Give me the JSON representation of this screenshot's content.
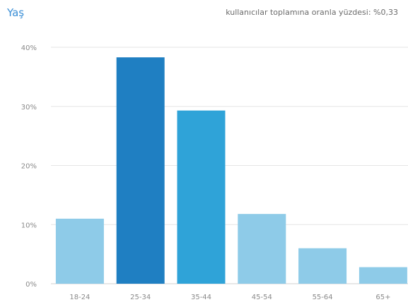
{
  "header": {
    "title": "Yaş",
    "subtitle": "kullanıcılar toplamına oranla yüzdesi: %0,33"
  },
  "colors": {
    "title": "#3b8fd6",
    "bar_light": "#8ecbe8",
    "bar_dark": "#1f7fc2",
    "bar_mid": "#2fa3d8",
    "grid": "#e6e6e6",
    "axis": "#cfcfcf"
  },
  "chart_data": {
    "type": "bar",
    "categories": [
      "18-24",
      "25-34",
      "35-44",
      "45-54",
      "55-64",
      "65+"
    ],
    "values": [
      11,
      38.3,
      29.3,
      11.8,
      6,
      2.8
    ],
    "bar_colors": [
      "#8ecbe8",
      "#1f7fc2",
      "#2fa3d8",
      "#8ecbe8",
      "#8ecbe8",
      "#8ecbe8"
    ],
    "yticks": [
      "0%",
      "10%",
      "20%",
      "30%",
      "40%"
    ],
    "ylim": [
      0,
      40
    ],
    "grid": true,
    "legend": "none"
  }
}
